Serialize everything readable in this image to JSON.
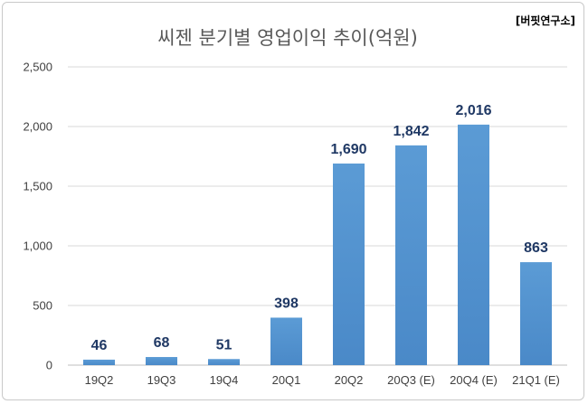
{
  "chart_data": {
    "type": "bar",
    "title": "씨젠 분기별 영업이익 추이(억원)",
    "source": "[버핏연구소]",
    "categories": [
      "19Q2",
      "19Q3",
      "19Q4",
      "20Q1",
      "20Q2",
      "20Q3 (E)",
      "20Q4 (E)",
      "21Q1 (E)"
    ],
    "values": [
      46,
      68,
      51,
      398,
      1690,
      1842,
      2016,
      863
    ],
    "value_labels": [
      "46",
      "68",
      "51",
      "398",
      "1,690",
      "1,842",
      "2,016",
      "863"
    ],
    "ylim": [
      0,
      2500
    ],
    "yticks": [
      0,
      500,
      1000,
      1500,
      2000,
      2500
    ],
    "ytick_labels": [
      "0",
      "500",
      "1,000",
      "1,500",
      "2,000",
      "2,500"
    ],
    "xlabel": "",
    "ylabel": "",
    "grid": true,
    "legend": "none",
    "bar_color": "#5b9bd5",
    "bar_color_dark": "#4a89c8"
  }
}
